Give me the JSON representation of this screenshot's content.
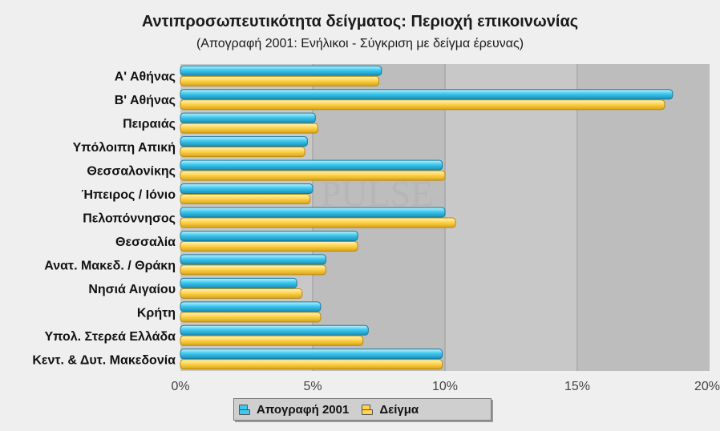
{
  "title": "Αντιπροσωπευτικότητα δείγματος: Περιοχή επικοινωνίας",
  "subtitle": "(Απογραφή 2001: Ενήλικοι - Σύγκριση με δείγμα έρευνας)",
  "watermark": "PULSE",
  "colors": {
    "census": "#3dc8ee",
    "sample": "#ffd34d",
    "plot_band_dark": "#bdbdbd",
    "plot_band_light": "#c8c8c8",
    "background": "#efefef"
  },
  "legend": {
    "census_label": "Απογραφή 2001",
    "sample_label": "Δείγμα"
  },
  "chart_data": {
    "type": "bar",
    "orientation": "horizontal",
    "categories": [
      "Α' Αθήνας",
      "Β' Αθήνας",
      "Πειραιάς",
      "Υπόλοιπη Απική",
      "Θεσσαλονίκης",
      "Ήπειρος / Ιόνιο",
      "Πελοπόννησος",
      "Θεσσαλία",
      "Ανατ. Μακεδ. / Θράκη",
      "Νησιά Αιγαίου",
      "Κρήτη",
      "Υπολ. Στερεά Ελλάδα",
      "Κεντ. & Δυτ. Μακεδονία"
    ],
    "series": [
      {
        "name": "Απογραφή 2001",
        "values": [
          7.6,
          18.6,
          5.1,
          4.8,
          9.9,
          5.0,
          10.0,
          6.7,
          5.5,
          4.4,
          5.3,
          7.1,
          9.9
        ]
      },
      {
        "name": "Δείγμα",
        "values": [
          7.5,
          18.3,
          5.2,
          4.7,
          10.0,
          4.9,
          10.4,
          6.7,
          5.5,
          4.6,
          5.3,
          6.9,
          9.9
        ]
      }
    ],
    "xlim": [
      0,
      20
    ],
    "xticks": [
      0,
      5,
      10,
      15,
      20
    ],
    "xtick_labels": [
      "0%",
      "5%",
      "10%",
      "15%",
      "20%"
    ],
    "grid": true,
    "legend_position": "bottom"
  }
}
